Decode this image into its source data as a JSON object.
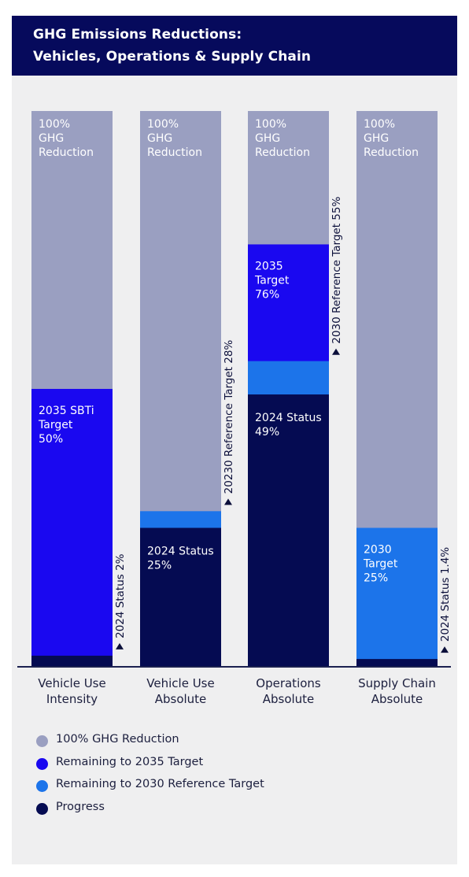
{
  "header": {
    "title_line1": "GHG Emissions Reductions:",
    "title_line2": "Vehicles, Operations & Supply Chain"
  },
  "colors": {
    "header_bg": "#060a5c",
    "full_reduction": "#9a9fc1",
    "remaining_2035": "#1a08f0",
    "remaining_2030": "#1c74ea",
    "progress": "#050b52"
  },
  "legend": [
    {
      "label": "100% GHG Reduction",
      "color": "#9a9fc1"
    },
    {
      "label": "Remaining to 2035 Target",
      "color": "#1a08f0"
    },
    {
      "label": "Remaining to 2030 Reference Target",
      "color": "#1c74ea"
    },
    {
      "label": "Progress",
      "color": "#050b52"
    }
  ],
  "chart_data": {
    "type": "bar",
    "stacked": true,
    "ylim": [
      0,
      100
    ],
    "unit": "%",
    "categories": [
      "Vehicle Use\nIntensity",
      "Vehicle Use\nAbsolute",
      "Operations\nAbsolute",
      "Supply Chain\nAbsolute"
    ],
    "bars": [
      {
        "category_lines": [
          "Vehicle Use",
          "Intensity"
        ],
        "total_label": [
          "100%",
          "GHG",
          "Reduction"
        ],
        "progress": 2,
        "target_2030": null,
        "target_2035": 50,
        "target_2035_label": [
          "2035 SBTi",
          "Target",
          "50%"
        ],
        "status_label": [],
        "side_annotation": {
          "text": "2024 Status 2%",
          "at": 2
        }
      },
      {
        "category_lines": [
          "Vehicle Use",
          "Absolute"
        ],
        "total_label": [
          "100%",
          "GHG",
          "Reduction"
        ],
        "progress": 25,
        "target_2030": 28,
        "target_2035": null,
        "target_2035_label": [],
        "status_label": [
          "2024 Status",
          "25%"
        ],
        "side_annotation": {
          "text": "20230 Reference Target 28%",
          "at": 28
        }
      },
      {
        "category_lines": [
          "Operations",
          "Absolute"
        ],
        "total_label": [
          "100%",
          "GHG",
          "Reduction"
        ],
        "progress": 49,
        "target_2030": 55,
        "target_2035": 76,
        "target_2035_label": [
          "2035",
          "Target",
          "76%"
        ],
        "status_label": [
          "2024 Status",
          "49%"
        ],
        "side_annotation": {
          "text": "2030 Reference Target 55%",
          "at": 55
        }
      },
      {
        "category_lines": [
          "Supply Chain",
          "Absolute"
        ],
        "total_label": [
          "100%",
          "GHG",
          "Reduction"
        ],
        "progress": 1.4,
        "target_2030": 25,
        "target_2035": null,
        "target_2035_label": [],
        "target_2030_label": [
          "2030",
          "Target",
          "25%"
        ],
        "status_label": [],
        "side_annotation": {
          "text": "2024 Status 1.4%",
          "at": 1.4
        }
      }
    ]
  }
}
